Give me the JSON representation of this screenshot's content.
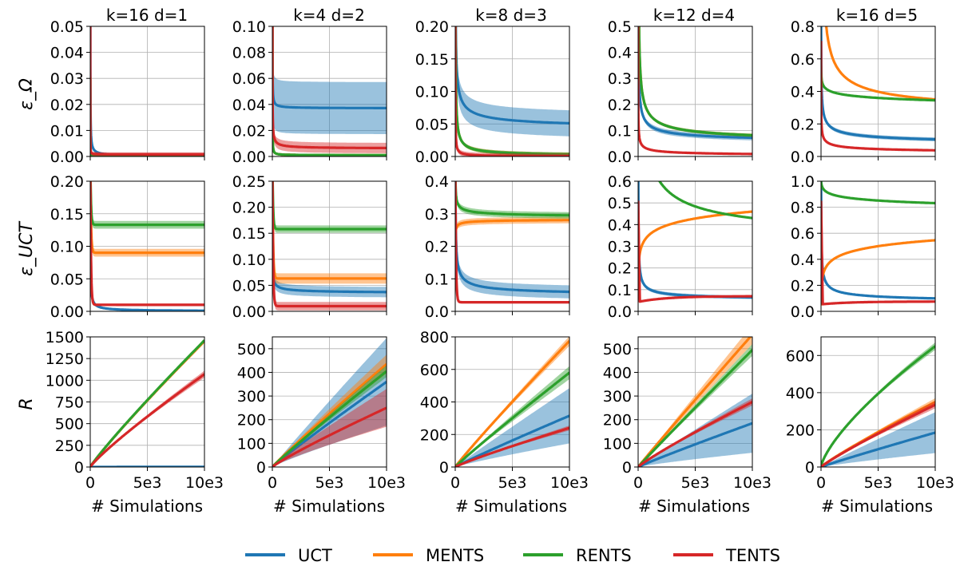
{
  "colors": {
    "UCT": "#1f77b4",
    "MENTS": "#ff7f0e",
    "RENTS": "#2ca02c",
    "TENTS": "#d62728",
    "grid": "#b0b0b0"
  },
  "legend": [
    "UCT",
    "MENTS",
    "RENTS",
    "TENTS"
  ],
  "row_ylabels": [
    "ε_Ω",
    "ε_UCT",
    "R"
  ],
  "x_ticks": [
    "0",
    "5e3",
    "10e3"
  ],
  "x_label": "# Simulations",
  "columns": [
    "k=16  d=1",
    "k=4  d=2",
    "k=8  d=3",
    "k=12  d=4",
    "k=16  d=5"
  ],
  "chart_data": [
    {
      "type": "line",
      "title": "k=16  d=1",
      "ylabel": "ε_Ω",
      "xlim": [
        0,
        10000
      ],
      "ylim": [
        0,
        0.05
      ],
      "yticks": [
        0,
        0.01,
        0.02,
        0.03,
        0.04,
        0.05
      ],
      "ytick_labels": [
        "0.00",
        "0.01",
        "0.02",
        "0.03",
        "0.04",
        "0.05"
      ],
      "series": [
        {
          "name": "UCT",
          "a": 0.2,
          "p": 0.75,
          "c": 0,
          "band": 0
        },
        {
          "name": "MENTS",
          "a": 0.03,
          "p": 1.2,
          "c": 0.0005,
          "band": 0
        },
        {
          "name": "RENTS",
          "a": 0.03,
          "p": 1.2,
          "c": 0.0005,
          "band": 0
        },
        {
          "name": "TENTS",
          "a": 0.06,
          "p": 1.0,
          "c": 0.0008,
          "band": 0.0008
        }
      ]
    },
    {
      "type": "line",
      "title": "k=4  d=2",
      "ylabel": "",
      "xlim": [
        0,
        10000
      ],
      "ylim": [
        0,
        0.1
      ],
      "yticks": [
        0,
        0.02,
        0.04,
        0.06,
        0.08,
        0.1
      ],
      "ytick_labels": [
        "0.00",
        "0.02",
        "0.04",
        "0.06",
        "0.08",
        "0.10"
      ],
      "series": [
        {
          "name": "UCT",
          "a": 0.3,
          "p": 0.8,
          "c": 0.037,
          "band": 0.02
        },
        {
          "name": "MENTS",
          "a": 0.4,
          "p": 1.0,
          "c": 0.001,
          "band": 0.001
        },
        {
          "name": "RENTS",
          "a": 0.4,
          "p": 1.0,
          "c": 0.001,
          "band": 0.001
        },
        {
          "name": "TENTS",
          "a": 0.3,
          "p": 0.7,
          "c": 0.006,
          "band": 0.004
        }
      ]
    },
    {
      "type": "line",
      "title": "k=8  d=3",
      "ylabel": "",
      "xlim": [
        0,
        10000
      ],
      "ylim": [
        0,
        0.2
      ],
      "yticks": [
        0,
        0.05,
        0.1,
        0.15,
        0.2
      ],
      "ytick_labels": [
        "0.00",
        "0.05",
        "0.10",
        "0.15",
        "0.20"
      ],
      "series": [
        {
          "name": "UCT",
          "a": 1.1,
          "p": 0.5,
          "c": 0.04,
          "band": 0.02
        },
        {
          "name": "MENTS",
          "a": 2.0,
          "p": 0.7,
          "c": 0,
          "band": 0.003
        },
        {
          "name": "RENTS",
          "a": 2.0,
          "p": 0.7,
          "c": 0,
          "band": 0.003
        },
        {
          "name": "TENTS",
          "a": 0.8,
          "p": 0.8,
          "c": 0,
          "band": 0.004
        }
      ]
    },
    {
      "type": "line",
      "title": "k=12  d=4",
      "ylabel": "",
      "xlim": [
        0,
        10000
      ],
      "ylim": [
        0,
        0.5
      ],
      "yticks": [
        0,
        0.1,
        0.2,
        0.3,
        0.4,
        0.5
      ],
      "ytick_labels": [
        "0.0",
        "0.1",
        "0.2",
        "0.3",
        "0.4",
        "0.5"
      ],
      "series": [
        {
          "name": "UCT",
          "a": 2.2,
          "p": 0.5,
          "c": 0.05,
          "band": 0.01
        },
        {
          "name": "MENTS",
          "a": 5.0,
          "p": 0.55,
          "c": 0.05,
          "band": 0.006
        },
        {
          "name": "RENTS",
          "a": 5.0,
          "p": 0.55,
          "c": 0.05,
          "band": 0.006
        },
        {
          "name": "TENTS",
          "a": 0.6,
          "p": 0.45,
          "c": 0,
          "band": 0.004
        }
      ]
    },
    {
      "type": "line",
      "title": "k=16  d=5",
      "ylabel": "",
      "xlim": [
        0,
        10000
      ],
      "ylim": [
        0,
        0.8
      ],
      "yticks": [
        0,
        0.2,
        0.4,
        0.6,
        0.8
      ],
      "ytick_labels": [
        "0.0",
        "0.2",
        "0.4",
        "0.6",
        "0.8"
      ],
      "series": [
        {
          "name": "UCT",
          "a": 1.8,
          "p": 0.4,
          "c": 0.06,
          "band": 0.012
        },
        {
          "name": "MENTS",
          "a": 16,
          "p": 0.55,
          "c": 0.25,
          "band": 0.006
        },
        {
          "name": "RENTS",
          "a": 0.6,
          "p": 0.06,
          "c": 0,
          "band": 0.006
        },
        {
          "name": "TENTS",
          "a": 0.7,
          "p": 0.35,
          "c": 0.01,
          "band": 0.006
        }
      ]
    },
    {
      "type": "line",
      "title": "",
      "ylabel": "ε_UCT",
      "xlim": [
        0,
        10000
      ],
      "ylim": [
        0,
        0.2
      ],
      "yticks": [
        0,
        0.05,
        0.1,
        0.15,
        0.2
      ],
      "ytick_labels": [
        "0.00",
        "0.05",
        "0.10",
        "0.15",
        "0.20"
      ],
      "series": [
        {
          "name": "UCT",
          "a": 1.0,
          "p": 0.75,
          "c": 0,
          "band": 0
        },
        {
          "name": "MENTS",
          "kind": "flat",
          "c": 0.09,
          "band": 0.006
        },
        {
          "name": "RENTS",
          "kind": "flat",
          "c": 0.133,
          "band": 0.006
        },
        {
          "name": "TENTS",
          "kind": "flat",
          "c": 0.01,
          "band": 0.002
        }
      ]
    },
    {
      "type": "line",
      "title": "",
      "ylabel": "",
      "xlim": [
        0,
        10000
      ],
      "ylim": [
        0,
        0.25
      ],
      "yticks": [
        0,
        0.05,
        0.1,
        0.15,
        0.2,
        0.25
      ],
      "ytick_labels": [
        "0.00",
        "0.05",
        "0.10",
        "0.15",
        "0.20",
        "0.25"
      ],
      "series": [
        {
          "name": "UCT",
          "a": 0.3,
          "p": 0.5,
          "c": 0.034,
          "band": 0.01
        },
        {
          "name": "MENTS",
          "kind": "flat",
          "c": 0.063,
          "band": 0.01
        },
        {
          "name": "RENTS",
          "kind": "flat",
          "c": 0.158,
          "band": 0.007
        },
        {
          "name": "TENTS",
          "kind": "flat",
          "c": 0.01,
          "band": 0.008
        }
      ]
    },
    {
      "type": "line",
      "title": "",
      "ylabel": "",
      "xlim": [
        0,
        10000
      ],
      "ylim": [
        0,
        0.4
      ],
      "yticks": [
        0,
        0.1,
        0.2,
        0.3,
        0.4
      ],
      "ytick_labels": [
        "0.0",
        "0.1",
        "0.2",
        "0.3",
        "0.4"
      ],
      "series": [
        {
          "name": "UCT",
          "a": 1.5,
          "p": 0.5,
          "c": 0.045,
          "band": 0.02
        },
        {
          "name": "MENTS",
          "kind": "rise",
          "c": 0.285,
          "a": 0.18,
          "p": 0.4,
          "band": 0.01
        },
        {
          "name": "RENTS",
          "a": 0.4,
          "p": 0.4,
          "c": 0.285,
          "band": 0.01
        },
        {
          "name": "TENTS",
          "kind": "flat",
          "c": 0.028,
          "band": 0.004
        }
      ]
    },
    {
      "type": "line",
      "title": "",
      "ylabel": "",
      "xlim": [
        0,
        10000
      ],
      "ylim": [
        0,
        0.6
      ],
      "yticks": [
        0,
        0.1,
        0.2,
        0.3,
        0.4,
        0.5,
        0.6
      ],
      "ytick_labels": [
        "0.0",
        "0.1",
        "0.2",
        "0.3",
        "0.4",
        "0.5",
        "0.6"
      ],
      "series": [
        {
          "name": "UCT",
          "a": 2.3,
          "p": 0.55,
          "c": 0.05,
          "band": 0.008
        },
        {
          "name": "MENTS",
          "kind": "log",
          "c": 0.1,
          "k": 0.046,
          "band": 0.005
        },
        {
          "name": "RENTS",
          "a": 13,
          "p": 0.5,
          "c": 0.3,
          "band": 0.005
        },
        {
          "name": "TENTS",
          "kind": "dip",
          "c": 0.07,
          "d": 0.045,
          "band": 0.005
        }
      ]
    },
    {
      "type": "line",
      "title": "",
      "ylabel": "",
      "xlim": [
        0,
        10000
      ],
      "ylim": [
        0,
        1.0
      ],
      "yticks": [
        0,
        0.2,
        0.4,
        0.6,
        0.8,
        1.0
      ],
      "ytick_labels": [
        "0.0",
        "0.2",
        "0.4",
        "0.6",
        "0.8",
        "1.0"
      ],
      "series": [
        {
          "name": "UCT",
          "a": 2.5,
          "p": 0.45,
          "c": 0.06,
          "band": 0.008
        },
        {
          "name": "MENTS",
          "kind": "log",
          "c": 0.03,
          "k": 0.066,
          "band": 0.005
        },
        {
          "name": "RENTS",
          "kind": "decay",
          "c": 1.0,
          "k": 0.029,
          "band": 0.005
        },
        {
          "name": "TENTS",
          "kind": "dip",
          "c": 0.075,
          "d": 0.055,
          "band": 0.005
        }
      ]
    },
    {
      "type": "line",
      "title": "",
      "ylabel": "R",
      "xlim": [
        0,
        10000
      ],
      "ylim": [
        0,
        1500
      ],
      "yticks": [
        0,
        250,
        500,
        750,
        1000,
        1250,
        1500
      ],
      "ytick_labels": [
        "0",
        "250",
        "500",
        "750",
        "1000",
        "1250",
        "1500"
      ],
      "series": [
        {
          "name": "UCT",
          "kind": "pow",
          "end": 2,
          "e": 1,
          "band": 0
        },
        {
          "name": "MENTS",
          "kind": "pow",
          "end": 1450,
          "e": 0.92,
          "band": 10
        },
        {
          "name": "RENTS",
          "kind": "pow",
          "end": 1460,
          "e": 0.92,
          "band": 10
        },
        {
          "name": "TENTS",
          "kind": "pow",
          "end": 1070,
          "e": 0.88,
          "band": 40
        }
      ]
    },
    {
      "type": "line",
      "title": "",
      "ylabel": "",
      "xlim": [
        0,
        10000
      ],
      "ylim": [
        0,
        550
      ],
      "yticks": [
        0,
        100,
        200,
        300,
        400,
        500
      ],
      "ytick_labels": [
        "0",
        "100",
        "200",
        "300",
        "400",
        "500"
      ],
      "series": [
        {
          "name": "UCT",
          "kind": "pow",
          "end": 360,
          "e": 0.95,
          "band": 185
        },
        {
          "name": "MENTS",
          "kind": "pow",
          "end": 435,
          "e": 0.95,
          "band": 40
        },
        {
          "name": "RENTS",
          "kind": "pow",
          "end": 405,
          "e": 0.95,
          "band": 25
        },
        {
          "name": "TENTS",
          "kind": "pow",
          "end": 250,
          "e": 0.9,
          "band": 80
        }
      ]
    },
    {
      "type": "line",
      "title": "",
      "ylabel": "",
      "xlim": [
        0,
        10000
      ],
      "ylim": [
        0,
        800
      ],
      "yticks": [
        0,
        200,
        400,
        600,
        800
      ],
      "ytick_labels": [
        "0",
        "200",
        "400",
        "600",
        "800"
      ],
      "series": [
        {
          "name": "UCT",
          "kind": "pow",
          "end": 315,
          "e": 0.95,
          "band": 170
        },
        {
          "name": "MENTS",
          "kind": "pow",
          "end": 775,
          "e": 0.95,
          "band": 30
        },
        {
          "name": "RENTS",
          "kind": "pow",
          "end": 580,
          "e": 0.95,
          "band": 40
        },
        {
          "name": "TENTS",
          "kind": "pow",
          "end": 240,
          "e": 0.9,
          "band": 15
        }
      ]
    },
    {
      "type": "line",
      "title": "",
      "ylabel": "",
      "xlim": [
        0,
        10000
      ],
      "ylim": [
        0,
        550
      ],
      "yticks": [
        0,
        100,
        200,
        300,
        400,
        500
      ],
      "ytick_labels": [
        "0",
        "100",
        "200",
        "300",
        "400",
        "500"
      ],
      "series": [
        {
          "name": "UCT",
          "kind": "pow",
          "end": 185,
          "e": 0.95,
          "band": 125
        },
        {
          "name": "MENTS",
          "kind": "pow",
          "end": 560,
          "e": 0.98,
          "band": 40
        },
        {
          "name": "RENTS",
          "kind": "pow",
          "end": 495,
          "e": 0.98,
          "band": 25
        },
        {
          "name": "TENTS",
          "kind": "pow",
          "end": 275,
          "e": 0.9,
          "band": 15
        }
      ]
    },
    {
      "type": "line",
      "title": "",
      "ylabel": "",
      "xlim": [
        0,
        10000
      ],
      "ylim": [
        0,
        700
      ],
      "yticks": [
        0,
        200,
        400,
        600
      ],
      "ytick_labels": [
        "0",
        "200",
        "400",
        "600"
      ],
      "series": [
        {
          "name": "UCT",
          "kind": "pow",
          "end": 185,
          "e": 0.95,
          "band": 110
        },
        {
          "name": "MENTS",
          "kind": "pow",
          "end": 350,
          "e": 0.9,
          "band": 20
        },
        {
          "name": "RENTS",
          "kind": "pow",
          "end": 650,
          "e": 0.72,
          "band": 20
        },
        {
          "name": "TENTS",
          "kind": "pow",
          "end": 335,
          "e": 0.9,
          "band": 20
        }
      ]
    }
  ]
}
